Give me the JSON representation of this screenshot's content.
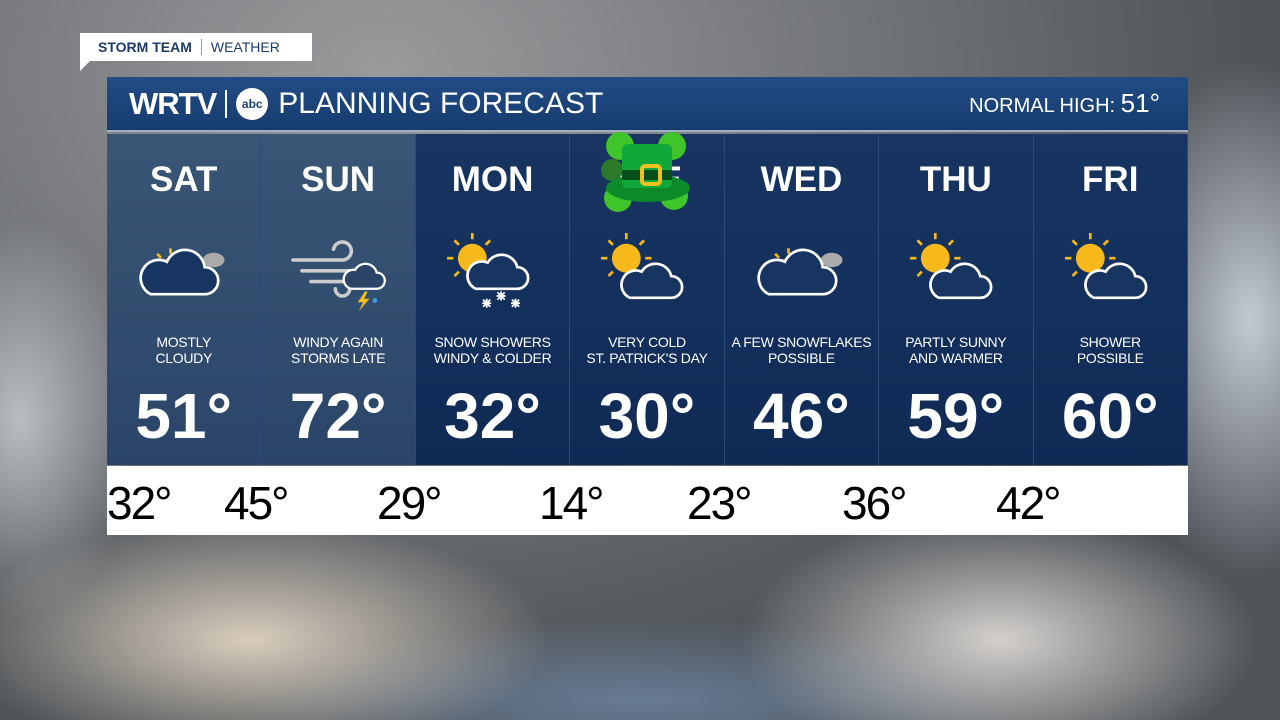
{
  "tag": {
    "left": "STORM TEAM",
    "right": "WEATHER"
  },
  "header": {
    "logo": "WRTV",
    "network": "abc",
    "title": "PLANNING FORECAST",
    "normal_label": "NORMAL HIGH:",
    "normal_value": "51°"
  },
  "days": [
    {
      "day": "SAT",
      "icon": "partly-cloudy-icon",
      "cond1": "MOSTLY",
      "cond2": "CLOUDY",
      "high": "51°"
    },
    {
      "day": "SUN",
      "icon": "wind-storm-icon",
      "cond1": "WINDY AGAIN",
      "cond2": "STORMS LATE",
      "high": "72°"
    },
    {
      "day": "MON",
      "icon": "sun-cloud-snow-icon",
      "cond1": "SNOW SHOWERS",
      "cond2": "WINDY & COLDER",
      "high": "32°"
    },
    {
      "day": "TUE",
      "icon": "partly-sunny-icon",
      "cond1": "VERY COLD",
      "cond2": "ST. PATRICK'S DAY",
      "high": "30°"
    },
    {
      "day": "WED",
      "icon": "partly-cloudy-icon",
      "cond1": "A FEW SNOWFLAKES",
      "cond2": "POSSIBLE",
      "high": "46°"
    },
    {
      "day": "THU",
      "icon": "partly-sunny-icon",
      "cond1": "PARTLY SUNNY",
      "cond2": "AND WARMER",
      "high": "59°"
    },
    {
      "day": "FRI",
      "icon": "partly-sunny-icon",
      "cond1": "SHOWER",
      "cond2": "POSSIBLE",
      "high": "60°"
    }
  ],
  "lows": [
    "32°",
    "45°",
    "29°",
    "14°",
    "23°",
    "36°",
    "42°"
  ]
}
